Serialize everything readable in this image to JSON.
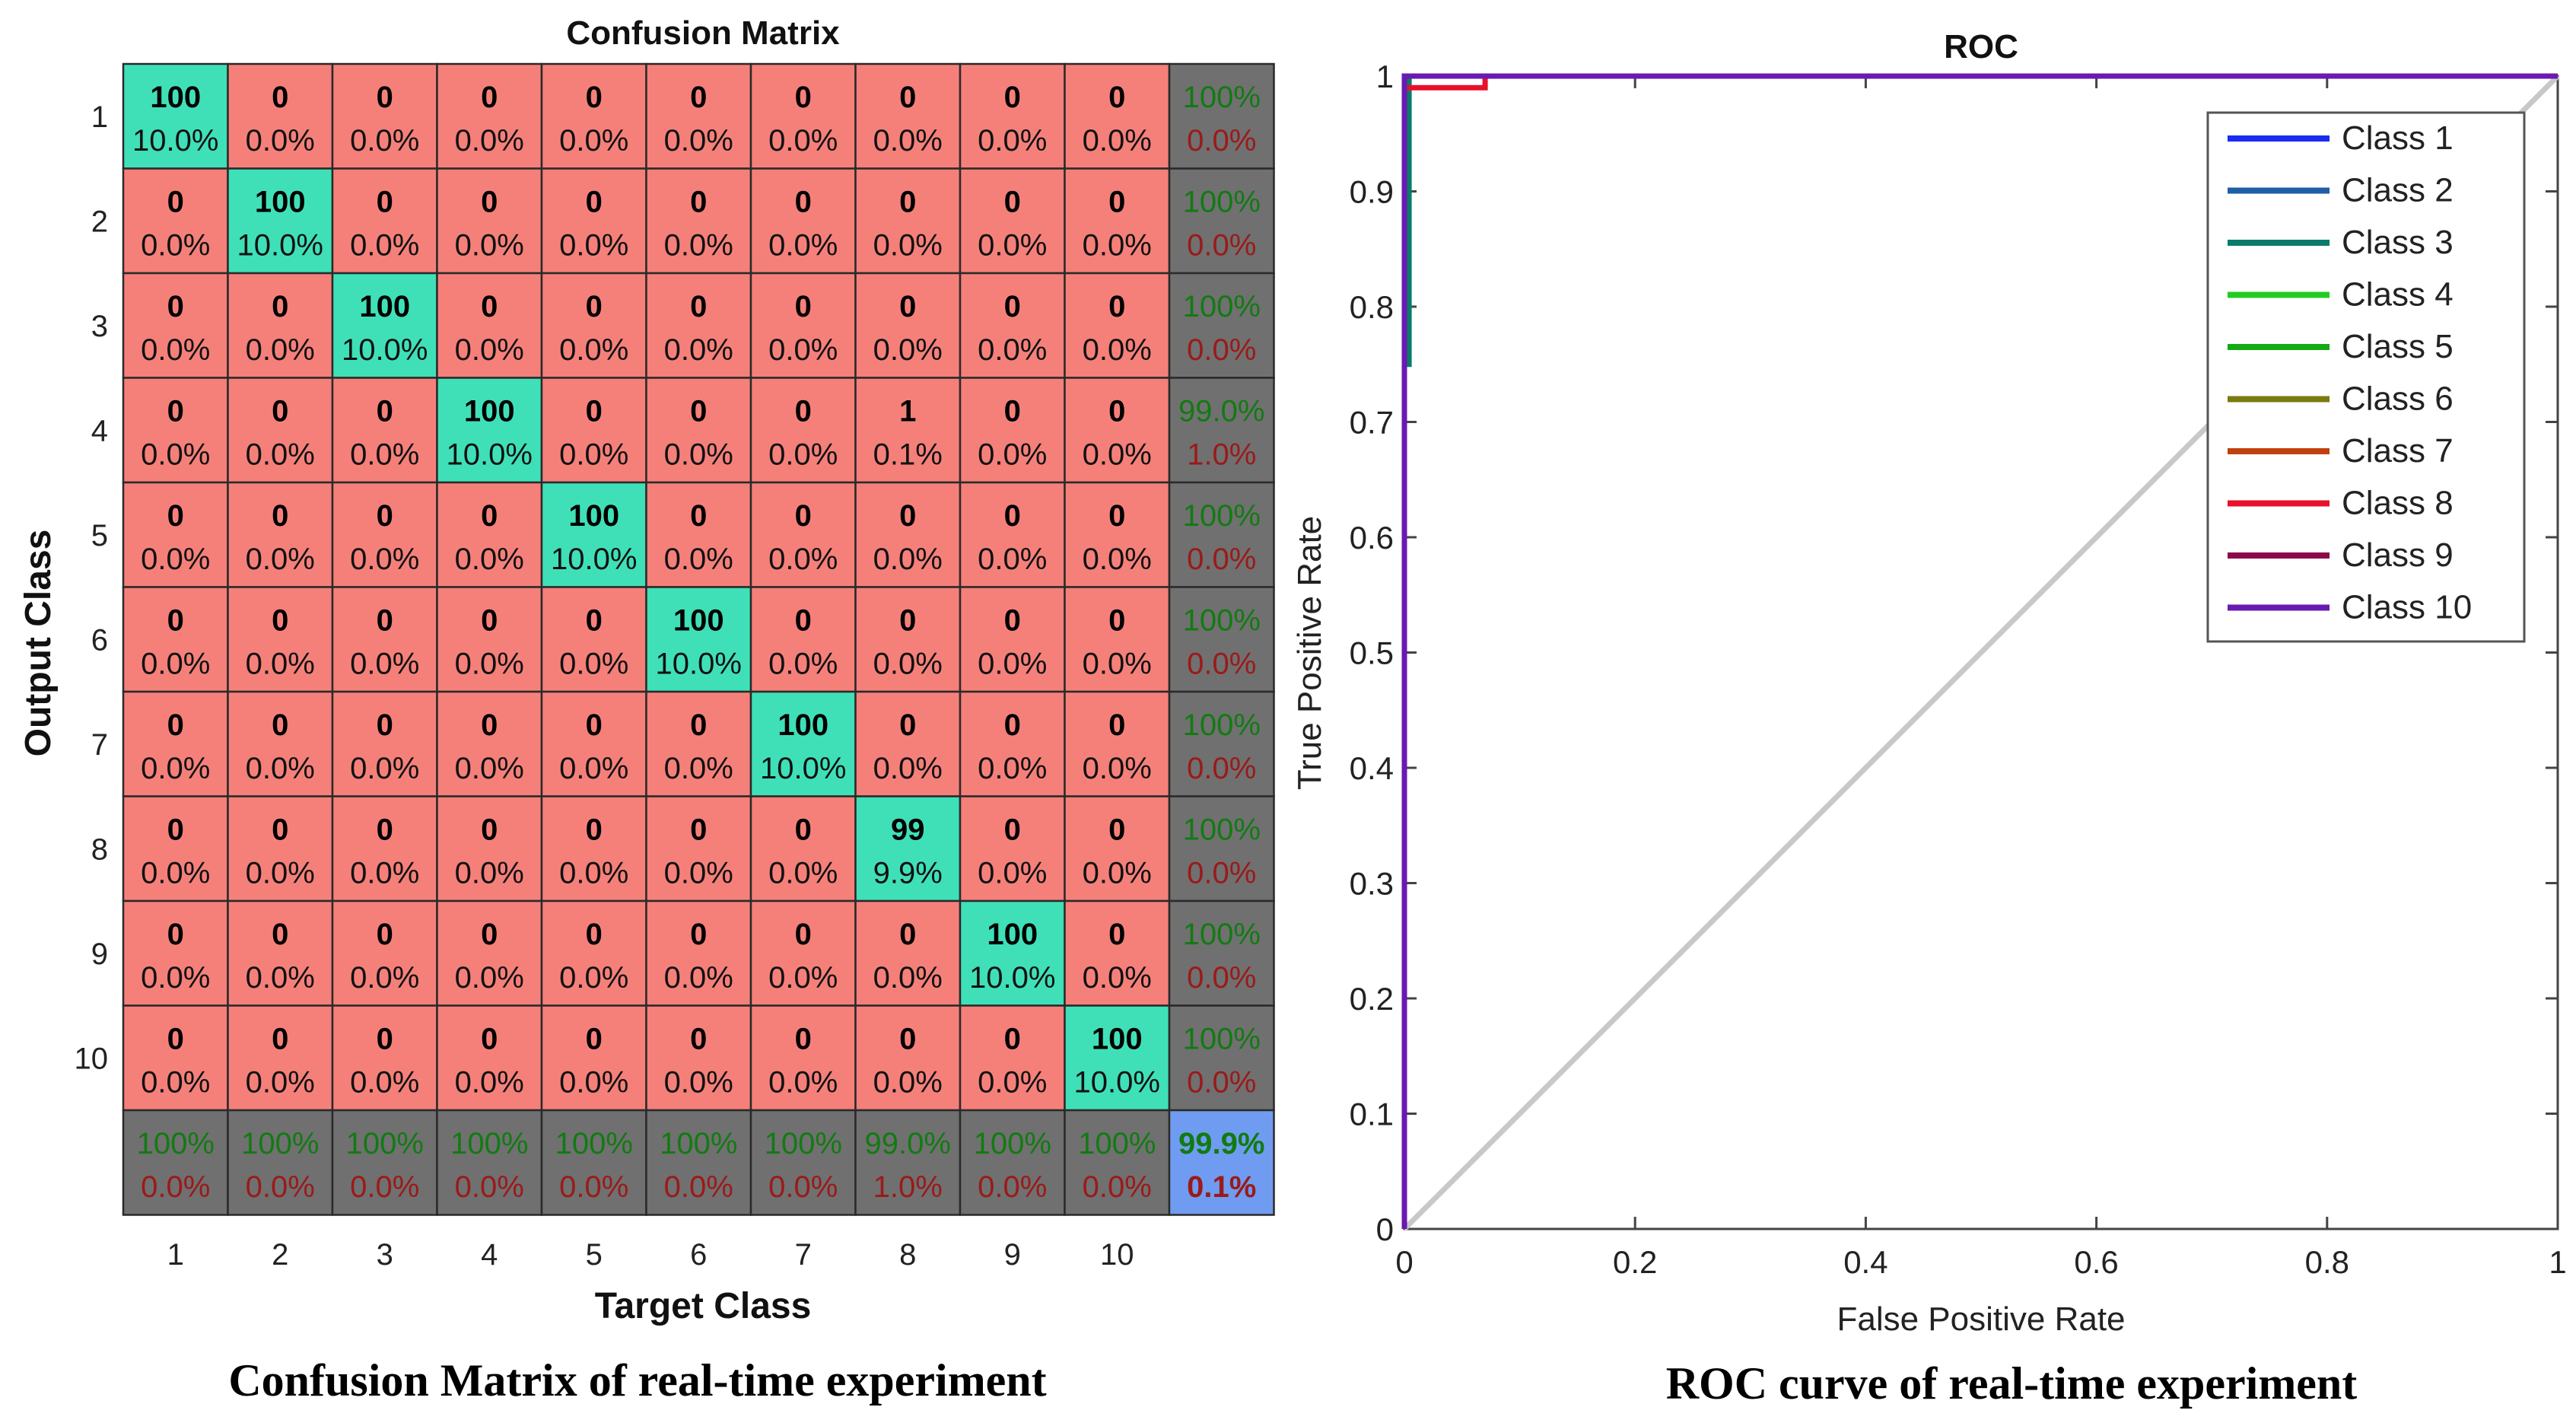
{
  "colors": {
    "correct_cell": "#3fe0b8",
    "wrong_cell": "#f5807a",
    "summary_cell": "#707070",
    "overall_cell": "#6f9cf0",
    "pct_green": "#127a12",
    "pct_red": "#9a1a1a",
    "diagonal_line": "#c8c8c8"
  },
  "captions": {
    "left": "Confusion Matrix of real-time experiment",
    "right": "ROC curve of real-time experiment"
  },
  "chart_data": [
    {
      "type": "heatmap",
      "title": "Confusion Matrix",
      "xlabel": "Target Class",
      "ylabel": "Output Class",
      "x_ticks": [
        "1",
        "2",
        "3",
        "4",
        "5",
        "6",
        "7",
        "8",
        "9",
        "10"
      ],
      "y_ticks": [
        "1",
        "2",
        "3",
        "4",
        "5",
        "6",
        "7",
        "8",
        "9",
        "10"
      ],
      "counts": [
        [
          100,
          0,
          0,
          0,
          0,
          0,
          0,
          0,
          0,
          0
        ],
        [
          0,
          100,
          0,
          0,
          0,
          0,
          0,
          0,
          0,
          0
        ],
        [
          0,
          0,
          100,
          0,
          0,
          0,
          0,
          0,
          0,
          0
        ],
        [
          0,
          0,
          0,
          100,
          0,
          0,
          0,
          1,
          0,
          0
        ],
        [
          0,
          0,
          0,
          0,
          100,
          0,
          0,
          0,
          0,
          0
        ],
        [
          0,
          0,
          0,
          0,
          0,
          100,
          0,
          0,
          0,
          0
        ],
        [
          0,
          0,
          0,
          0,
          0,
          0,
          100,
          0,
          0,
          0
        ],
        [
          0,
          0,
          0,
          0,
          0,
          0,
          0,
          99,
          0,
          0
        ],
        [
          0,
          0,
          0,
          0,
          0,
          0,
          0,
          0,
          100,
          0
        ],
        [
          0,
          0,
          0,
          0,
          0,
          0,
          0,
          0,
          0,
          100
        ]
      ],
      "percents": [
        [
          "10.0%",
          "0.0%",
          "0.0%",
          "0.0%",
          "0.0%",
          "0.0%",
          "0.0%",
          "0.0%",
          "0.0%",
          "0.0%"
        ],
        [
          "0.0%",
          "10.0%",
          "0.0%",
          "0.0%",
          "0.0%",
          "0.0%",
          "0.0%",
          "0.0%",
          "0.0%",
          "0.0%"
        ],
        [
          "0.0%",
          "0.0%",
          "10.0%",
          "0.0%",
          "0.0%",
          "0.0%",
          "0.0%",
          "0.0%",
          "0.0%",
          "0.0%"
        ],
        [
          "0.0%",
          "0.0%",
          "0.0%",
          "10.0%",
          "0.0%",
          "0.0%",
          "0.0%",
          "0.1%",
          "0.0%",
          "0.0%"
        ],
        [
          "0.0%",
          "0.0%",
          "0.0%",
          "0.0%",
          "10.0%",
          "0.0%",
          "0.0%",
          "0.0%",
          "0.0%",
          "0.0%"
        ],
        [
          "0.0%",
          "0.0%",
          "0.0%",
          "0.0%",
          "0.0%",
          "10.0%",
          "0.0%",
          "0.0%",
          "0.0%",
          "0.0%"
        ],
        [
          "0.0%",
          "0.0%",
          "0.0%",
          "0.0%",
          "0.0%",
          "0.0%",
          "10.0%",
          "0.0%",
          "0.0%",
          "0.0%"
        ],
        [
          "0.0%",
          "0.0%",
          "0.0%",
          "0.0%",
          "0.0%",
          "0.0%",
          "0.0%",
          "9.9%",
          "0.0%",
          "0.0%"
        ],
        [
          "0.0%",
          "0.0%",
          "0.0%",
          "0.0%",
          "0.0%",
          "0.0%",
          "0.0%",
          "0.0%",
          "10.0%",
          "0.0%"
        ],
        [
          "0.0%",
          "0.0%",
          "0.0%",
          "0.0%",
          "0.0%",
          "0.0%",
          "0.0%",
          "0.0%",
          "0.0%",
          "10.0%"
        ]
      ],
      "row_summary": [
        [
          "100%",
          "0.0%"
        ],
        [
          "100%",
          "0.0%"
        ],
        [
          "100%",
          "0.0%"
        ],
        [
          "99.0%",
          "1.0%"
        ],
        [
          "100%",
          "0.0%"
        ],
        [
          "100%",
          "0.0%"
        ],
        [
          "100%",
          "0.0%"
        ],
        [
          "100%",
          "0.0%"
        ],
        [
          "100%",
          "0.0%"
        ],
        [
          "100%",
          "0.0%"
        ]
      ],
      "col_summary": [
        [
          "100%",
          "0.0%"
        ],
        [
          "100%",
          "0.0%"
        ],
        [
          "100%",
          "0.0%"
        ],
        [
          "100%",
          "0.0%"
        ],
        [
          "100%",
          "0.0%"
        ],
        [
          "100%",
          "0.0%"
        ],
        [
          "100%",
          "0.0%"
        ],
        [
          "99.0%",
          "1.0%"
        ],
        [
          "100%",
          "0.0%"
        ],
        [
          "100%",
          "0.0%"
        ]
      ],
      "overall": [
        "99.9%",
        "0.1%"
      ]
    },
    {
      "type": "line",
      "title": "ROC",
      "xlabel": "False Positive Rate",
      "ylabel": "True Positive Rate",
      "xlim": [
        0,
        1
      ],
      "ylim": [
        0,
        1
      ],
      "x_ticks": [
        "0",
        "0.2",
        "0.4",
        "0.6",
        "0.8",
        "1"
      ],
      "y_ticks": [
        "0",
        "0.1",
        "0.2",
        "0.3",
        "0.4",
        "0.5",
        "0.6",
        "0.7",
        "0.8",
        "0.9",
        "1"
      ],
      "legend_position": "top-right",
      "series": [
        {
          "name": "Class 1",
          "color": "#1a2cf0",
          "points": [
            [
              0,
              0
            ],
            [
              0,
              1
            ],
            [
              1,
              1
            ]
          ]
        },
        {
          "name": "Class 2",
          "color": "#1f5fa8",
          "points": [
            [
              0,
              0
            ],
            [
              0,
              1
            ],
            [
              1,
              1
            ]
          ]
        },
        {
          "name": "Class 3",
          "color": "#0a7a6a",
          "points": [
            [
              0,
              0
            ],
            [
              0,
              0.75
            ],
            [
              0.004,
              0.75
            ],
            [
              0.004,
              1
            ],
            [
              1,
              1
            ]
          ]
        },
        {
          "name": "Class 4",
          "color": "#22cc22",
          "points": [
            [
              0,
              0
            ],
            [
              0,
              1
            ],
            [
              1,
              1
            ]
          ]
        },
        {
          "name": "Class 5",
          "color": "#14aa14",
          "points": [
            [
              0,
              0
            ],
            [
              0,
              1
            ],
            [
              1,
              1
            ]
          ]
        },
        {
          "name": "Class 6",
          "color": "#7a7a10",
          "points": [
            [
              0,
              0
            ],
            [
              0,
              1
            ],
            [
              1,
              1
            ]
          ]
        },
        {
          "name": "Class 7",
          "color": "#c04010",
          "points": [
            [
              0,
              0
            ],
            [
              0,
              1
            ],
            [
              1,
              1
            ]
          ]
        },
        {
          "name": "Class 8",
          "color": "#e8102a",
          "points": [
            [
              0,
              0
            ],
            [
              0,
              0.99
            ],
            [
              0.07,
              0.99
            ],
            [
              0.07,
              1
            ],
            [
              1,
              1
            ]
          ]
        },
        {
          "name": "Class 9",
          "color": "#8a0a4a",
          "points": [
            [
              0,
              0
            ],
            [
              0,
              1
            ],
            [
              1,
              1
            ]
          ]
        },
        {
          "name": "Class 10",
          "color": "#6a1ab0",
          "points": [
            [
              0,
              0
            ],
            [
              0,
              1
            ],
            [
              1,
              1
            ]
          ]
        }
      ],
      "reference_line": [
        [
          0,
          0
        ],
        [
          1,
          1
        ]
      ]
    }
  ]
}
